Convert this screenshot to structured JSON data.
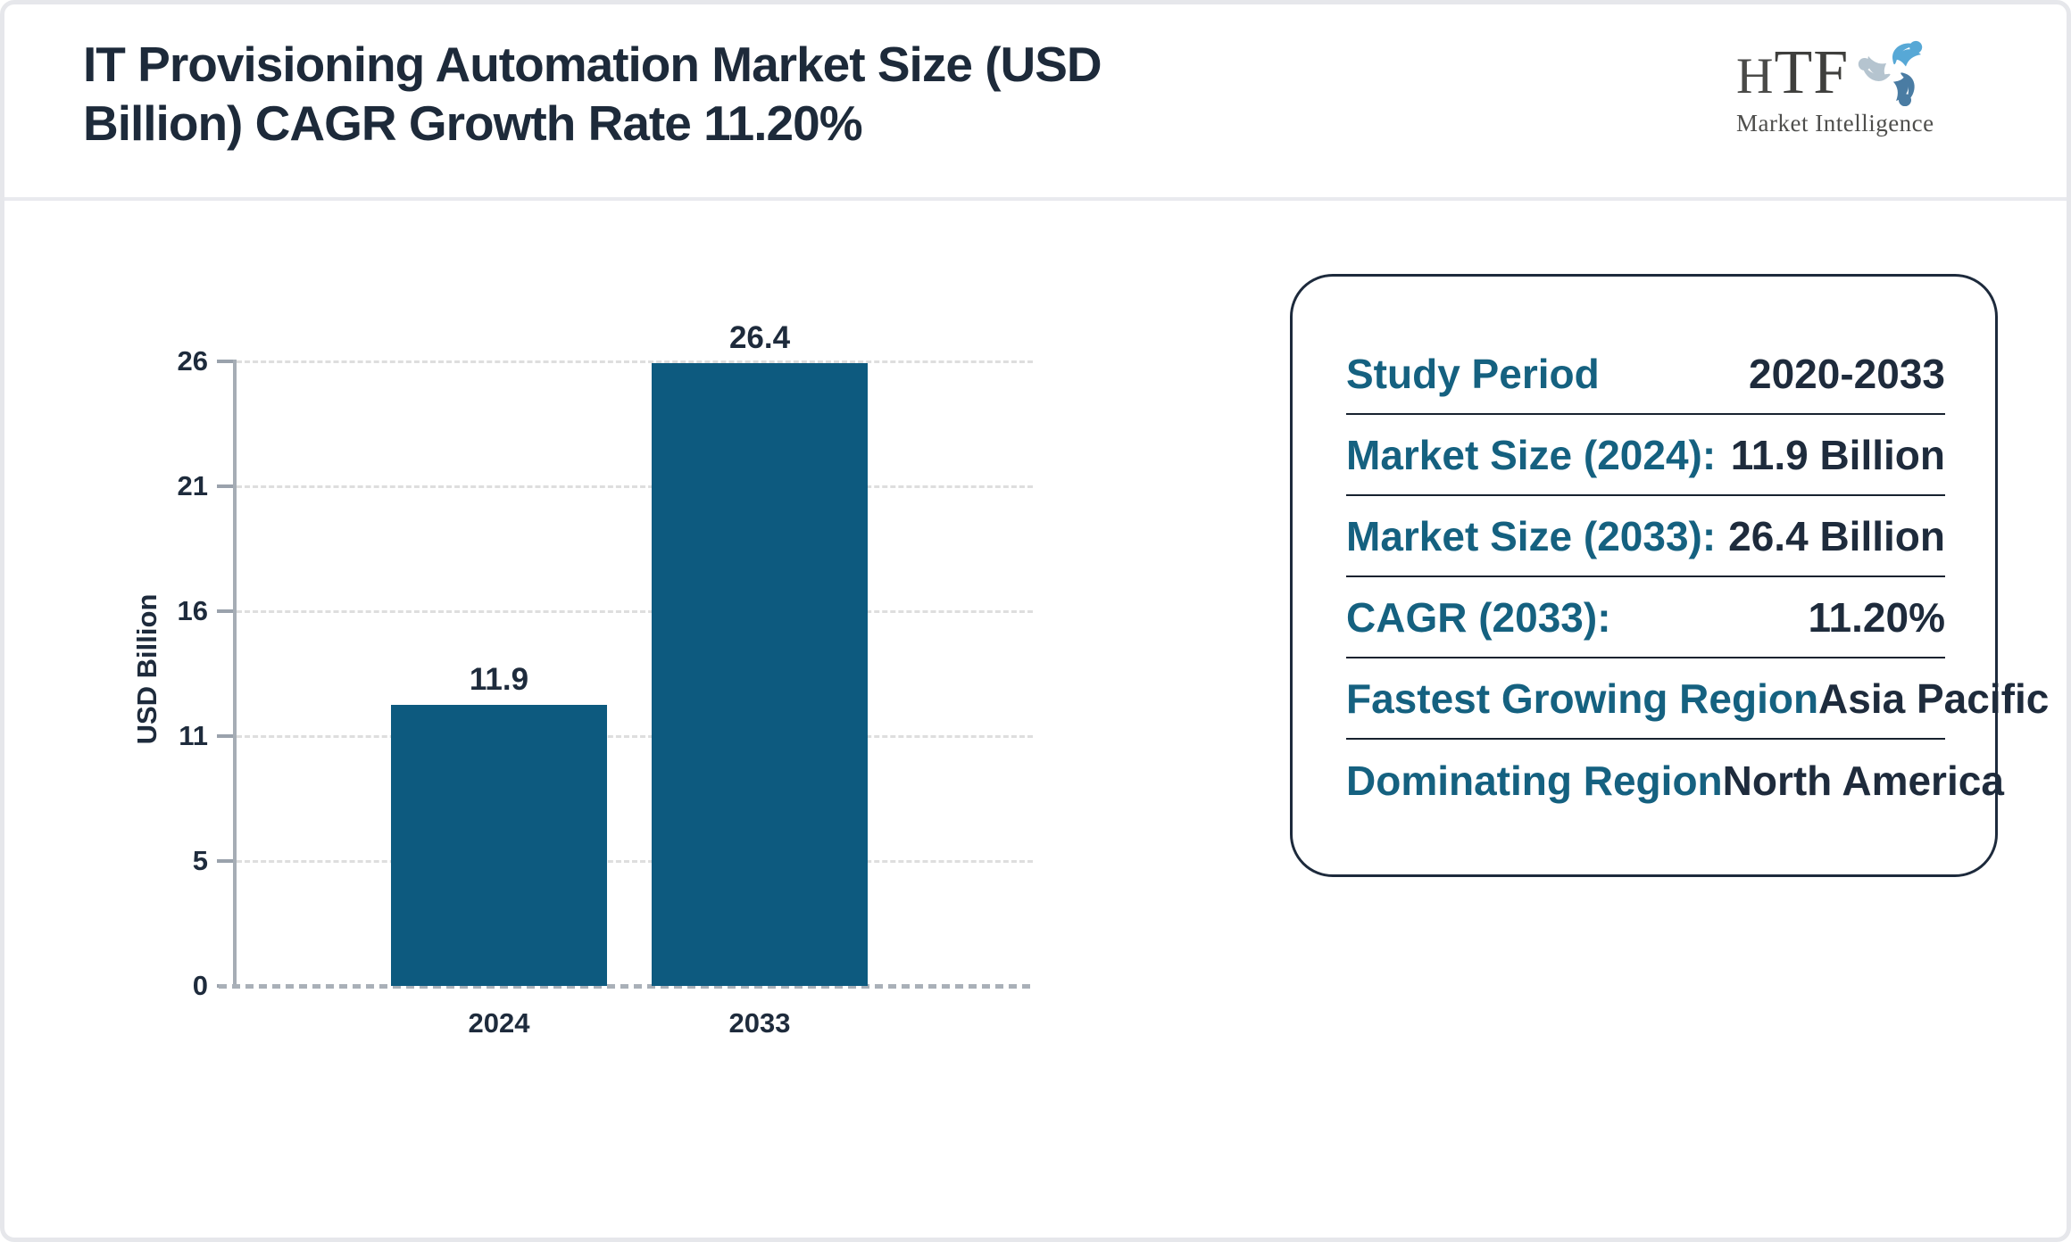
{
  "header": {
    "title_lines": [
      "IT Provisioning Automation Market Size (USD",
      "Billion) CAGR Growth Rate 11.20%"
    ],
    "logo": {
      "letters_first": "H",
      "letters_rest": "TF",
      "tagline": "Market Intelligence",
      "swirl_colors": [
        "#57a8d6",
        "#4a7ca3",
        "#b5c4cf"
      ]
    }
  },
  "chart_data": {
    "type": "bar",
    "categories": [
      "2024",
      "2033"
    ],
    "values": [
      11.9,
      26.4
    ],
    "value_labels": [
      "11.9",
      "26.4"
    ],
    "title": "IT Provisioning Automation Market Size (USD Billion) CAGR Growth Rate 11.20%",
    "xlabel": "",
    "ylabel": "USD Billion",
    "yticks": [
      26,
      21,
      16,
      11,
      5,
      0
    ],
    "ylim": [
      0,
      26.4
    ],
    "grid": "horizontal-dashed",
    "legend": "none",
    "bar_color": "#0d5a7f"
  },
  "info_panel": {
    "rows": [
      {
        "label": "Study Period",
        "value": "2020-2033"
      },
      {
        "label": "Market Size (2024):",
        "value": "11.9 Billion"
      },
      {
        "label": "Market Size (2033):",
        "value": "26.4 Billion"
      },
      {
        "label": "CAGR (2033):",
        "value": "11.20%"
      },
      {
        "label": "Fastest Growing Region",
        "value": "Asia Pacific"
      },
      {
        "label": "Dominating Region",
        "value": "North America"
      }
    ],
    "label_color": "#156180",
    "value_color": "#1e2b3c"
  }
}
